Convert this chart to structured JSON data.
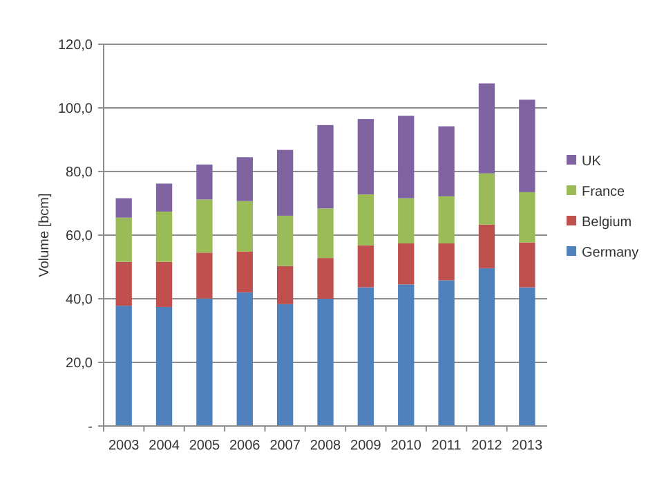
{
  "chart_data": {
    "type": "bar",
    "stacked": true,
    "ylabel": "Volume [bcm]",
    "categories": [
      "2003",
      "2004",
      "2005",
      "2006",
      "2007",
      "2008",
      "2009",
      "2010",
      "2011",
      "2012",
      "2013"
    ],
    "series": [
      {
        "name": "Germany",
        "color": "#4f81bd",
        "values": [
          37.8,
          37.4,
          40.1,
          42.0,
          38.3,
          40.0,
          43.6,
          44.5,
          45.8,
          49.6,
          43.6
        ]
      },
      {
        "name": "Belgium",
        "color": "#c0504d",
        "values": [
          13.8,
          14.2,
          14.4,
          12.8,
          12.0,
          12.8,
          13.2,
          12.9,
          11.6,
          13.7,
          14.1
        ]
      },
      {
        "name": "France",
        "color": "#9bbb59",
        "values": [
          13.9,
          15.8,
          16.7,
          15.9,
          15.8,
          15.6,
          16.0,
          14.2,
          14.8,
          16.1,
          15.8
        ]
      },
      {
        "name": "UK",
        "color": "#8064a2",
        "values": [
          6.1,
          8.8,
          11.0,
          13.8,
          20.7,
          26.2,
          23.7,
          25.9,
          22.0,
          28.3,
          29.1
        ]
      }
    ],
    "ylim": [
      0,
      120
    ],
    "yticks": [
      {
        "value": 0,
        "label": "-"
      },
      {
        "value": 20,
        "label": "20,0"
      },
      {
        "value": 40,
        "label": "40,0"
      },
      {
        "value": 60,
        "label": "60,0"
      },
      {
        "value": 80,
        "label": "80,0"
      },
      {
        "value": 100,
        "label": "100,0"
      },
      {
        "value": 120,
        "label": "120,0"
      }
    ],
    "grid": "y",
    "legend": "right"
  }
}
